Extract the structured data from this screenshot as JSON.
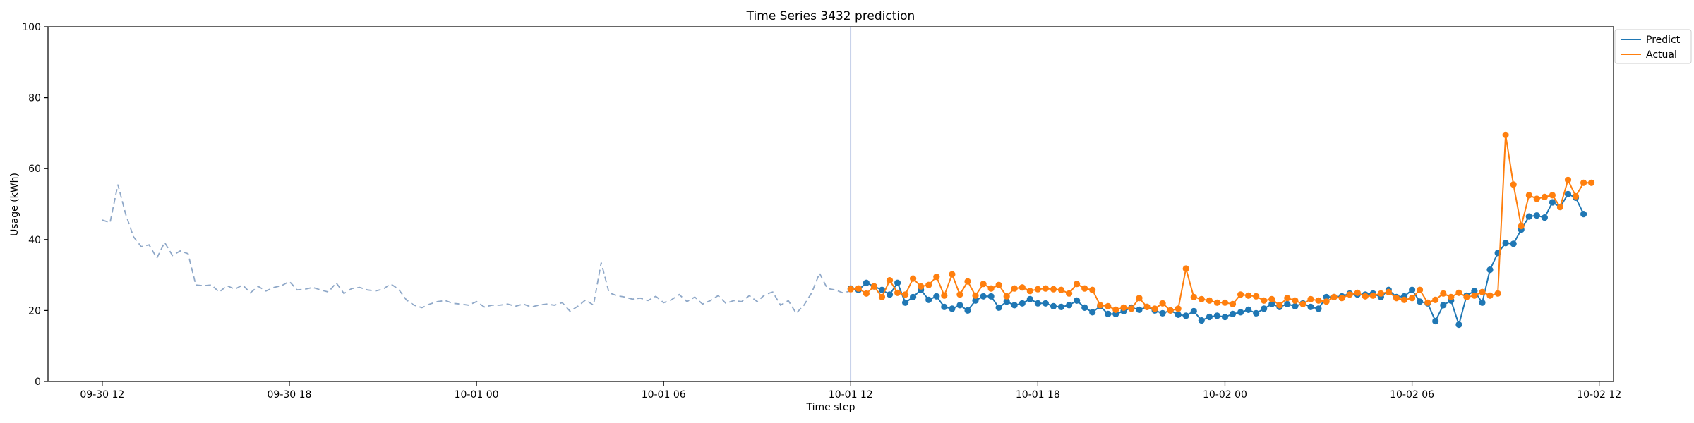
{
  "chart_data": {
    "type": "line",
    "title": "Time Series 3432 prediction",
    "xlabel": "Time step",
    "ylabel": "Usage (kWh)",
    "ylim": [
      0,
      100
    ],
    "yticks": [
      0,
      20,
      40,
      60,
      80,
      100
    ],
    "x_unit": "hours",
    "xlim": [
      -1.74,
      48.46
    ],
    "xticks": [
      {
        "x": 0,
        "label": "09-30 12"
      },
      {
        "x": 6,
        "label": "09-30 18"
      },
      {
        "x": 12,
        "label": "10-01 00"
      },
      {
        "x": 18,
        "label": "10-01 06"
      },
      {
        "x": 24,
        "label": "10-01 12"
      },
      {
        "x": 30,
        "label": "10-01 18"
      },
      {
        "x": 36,
        "label": "10-02 00"
      },
      {
        "x": 42,
        "label": "10-02 06"
      },
      {
        "x": 48,
        "label": "10-02 12"
      }
    ],
    "vline_x": 24,
    "x_step": 0.25,
    "history": {
      "x_start": 0,
      "values": [
        45.5,
        44.8,
        55.5,
        47.2,
        40.8,
        38.0,
        38.5,
        34.8,
        39.2,
        35.5,
        36.8,
        36.0,
        27.2,
        27.0,
        27.2,
        25.2,
        27.0,
        26.0,
        27.2,
        25.0,
        26.8,
        25.5,
        26.5,
        27.0,
        28.2,
        25.8,
        26.0,
        26.5,
        25.8,
        25.2,
        27.8,
        24.8,
        26.2,
        26.5,
        25.8,
        25.5,
        26.0,
        27.5,
        26.0,
        23.0,
        21.5,
        20.8,
        21.8,
        22.5,
        22.8,
        22.0,
        21.8,
        21.5,
        22.5,
        21.0,
        21.5,
        21.5,
        21.8,
        21.2,
        21.8,
        21.0,
        21.5,
        21.8,
        21.5,
        22.2,
        19.8,
        21.2,
        23.0,
        21.5,
        33.5,
        25.0,
        24.2,
        23.8,
        23.2,
        23.5,
        22.8,
        24.0,
        22.2,
        23.0,
        24.5,
        22.5,
        23.8,
        21.8,
        22.8,
        24.2,
        22.0,
        22.8,
        22.5,
        24.2,
        22.5,
        24.5,
        25.2,
        21.5,
        22.8,
        19.2,
        21.5,
        25.0,
        30.5,
        26.2,
        25.8,
        25.0,
        25.5
      ]
    },
    "series": [
      {
        "name": "Predict",
        "color": "#1f77b4",
        "x_start": 24,
        "values": [
          26.2,
          25.8,
          27.8,
          26.8,
          25.8,
          24.5,
          27.8,
          22.2,
          23.8,
          25.8,
          23.0,
          24.0,
          21.0,
          20.5,
          21.5,
          20.0,
          22.8,
          24.0,
          24.0,
          20.8,
          22.5,
          21.5,
          22.0,
          23.2,
          22.0,
          22.0,
          21.2,
          21.0,
          21.5,
          22.8,
          20.8,
          19.5,
          21.2,
          19.0,
          19.0,
          19.8,
          20.8,
          20.2,
          21.0,
          20.0,
          19.2,
          20.0,
          18.8,
          18.5,
          19.8,
          17.2,
          18.2,
          18.5,
          18.2,
          19.0,
          19.5,
          20.2,
          19.2,
          20.5,
          21.8,
          21.0,
          21.8,
          21.2,
          22.0,
          21.0,
          20.5,
          23.8,
          23.8,
          24.0,
          24.8,
          24.5,
          24.5,
          24.8,
          23.8,
          25.8,
          23.8,
          24.0,
          25.8,
          22.5,
          22.0,
          17.0,
          21.5,
          22.8,
          16.0,
          24.2,
          25.5,
          22.2,
          31.5,
          36.2,
          39.0,
          38.8,
          42.8,
          46.5,
          46.8,
          46.2,
          50.5,
          49.2,
          52.8,
          51.8,
          47.2
        ]
      },
      {
        "name": "Actual",
        "color": "#ff7f0e",
        "x_start": 24,
        "values": [
          26.0,
          26.2,
          24.8,
          26.8,
          23.8,
          28.5,
          25.0,
          24.5,
          29.0,
          26.8,
          27.2,
          29.5,
          24.2,
          30.2,
          24.5,
          28.2,
          24.2,
          27.5,
          26.2,
          27.2,
          24.0,
          26.2,
          26.5,
          25.5,
          26.0,
          26.2,
          26.0,
          25.8,
          24.8,
          27.5,
          26.2,
          25.8,
          21.5,
          21.2,
          20.2,
          20.8,
          20.5,
          23.5,
          21.0,
          20.5,
          22.0,
          20.0,
          20.5,
          31.8,
          23.8,
          23.2,
          22.8,
          22.2,
          22.2,
          21.8,
          24.5,
          24.2,
          24.0,
          22.8,
          23.2,
          21.5,
          23.5,
          22.8,
          21.8,
          23.2,
          22.8,
          22.5,
          23.8,
          23.5,
          24.5,
          25.0,
          24.0,
          24.2,
          24.8,
          25.2,
          23.5,
          23.0,
          23.5,
          25.8,
          22.2,
          23.0,
          24.8,
          23.8,
          25.0,
          23.8,
          24.2,
          25.2,
          24.2,
          24.8,
          69.5,
          55.5,
          43.8,
          52.5,
          51.5,
          52.0,
          52.5,
          49.2,
          56.8,
          52.2,
          56.0,
          56.0
        ]
      }
    ],
    "legend": {
      "placement": "top-right",
      "entries": [
        "Predict",
        "Actual"
      ]
    },
    "grid": false
  }
}
